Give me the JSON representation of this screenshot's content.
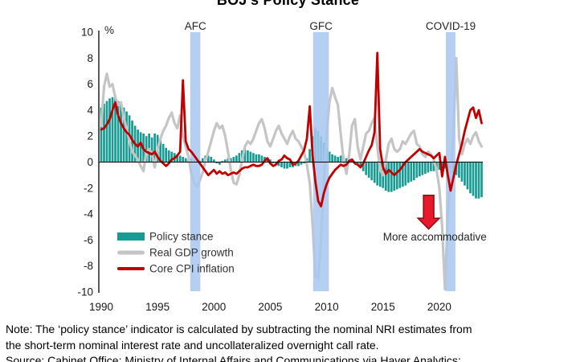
{
  "title": "BOJ’s Policy Stance",
  "chart_data": {
    "type": "combo",
    "frequency": "quarterly",
    "x_axis": {
      "start": 1990,
      "step": 0.25,
      "tick_years": [
        1990,
        1995,
        2000,
        2005,
        2010,
        2015,
        2020
      ]
    },
    "y_axis": {
      "unit_label": "%",
      "min": -10,
      "max": 10,
      "ticks": [
        10,
        8,
        6,
        4,
        2,
        0,
        -2,
        -4,
        -6,
        -8,
        -10
      ]
    },
    "grid": "zero-line-only",
    "legend_position": "inside-lower-left",
    "series": [
      {
        "name": "Policy stance",
        "type": "bar",
        "color": "#189B93",
        "values": [
          4.2,
          4.5,
          4.7,
          4.9,
          5.0,
          4.9,
          4.7,
          4.5,
          4.2,
          3.9,
          3.6,
          3.2,
          2.8,
          2.5,
          2.3,
          2.2,
          2.0,
          2.2,
          1.9,
          2.2,
          2.1,
          1.8,
          1.4,
          1.1,
          0.9,
          0.8,
          0.7,
          0.6,
          0.5,
          0.4,
          0.3,
          0.2,
          0.3,
          0.2,
          0.1,
          0.1,
          0.3,
          0.5,
          0.5,
          0.4,
          0.2,
          -0.1,
          -0.2,
          0.1,
          0.2,
          0.3,
          0.3,
          0.4,
          0.5,
          0.7,
          0.9,
          1.0,
          0.9,
          0.8,
          0.7,
          0.6,
          0.6,
          0.5,
          0.4,
          0.3,
          0.2,
          -0.1,
          -0.2,
          -0.3,
          -0.4,
          -0.5,
          -0.5,
          -0.4,
          -0.4,
          -0.3,
          -0.3,
          -0.2,
          -0.1,
          0.3,
          1.0,
          2.0,
          2.6,
          2.4,
          2.0,
          1.5,
          1.1,
          0.8,
          0.6,
          0.5,
          0.4,
          0.5,
          0.4,
          0.3,
          0.2,
          0.1,
          -0.1,
          -0.2,
          -0.4,
          -0.7,
          -1.0,
          -1.2,
          -1.4,
          -1.6,
          -1.8,
          -1.9,
          -2.0,
          -2.2,
          -2.3,
          -2.3,
          -2.2,
          -2.1,
          -2.0,
          -1.9,
          -1.8,
          -1.6,
          -1.5,
          -1.4,
          -1.2,
          -1.1,
          -1.0,
          -0.9,
          -0.8,
          -0.7,
          -0.7,
          -0.6,
          -0.6,
          -0.5,
          -0.5,
          -0.6,
          -0.7,
          -0.9,
          -1.0,
          -1.2,
          -1.5,
          -1.8,
          -2.1,
          -2.4,
          -2.6,
          -2.8,
          -2.8,
          -2.7
        ]
      },
      {
        "name": "Real GDP growth",
        "type": "line",
        "color": "#C5C5C5",
        "values": [
          2.8,
          5.8,
          6.8,
          5.8,
          6.0,
          5.0,
          4.4,
          4.6,
          3.4,
          2.6,
          1.6,
          0.8,
          0.5,
          0.2,
          -0.3,
          -0.7,
          0.8,
          1.0,
          0.7,
          -0.4,
          1.0,
          1.8,
          2.4,
          2.8,
          3.4,
          3.8,
          3.0,
          2.6,
          3.6,
          2.0,
          1.2,
          0.4,
          -0.9,
          -1.6,
          -1.9,
          -1.4,
          -0.8,
          0.1,
          0.8,
          1.6,
          2.4,
          3.0,
          2.6,
          2.8,
          2.0,
          0.8,
          -0.6,
          -1.6,
          -1.7,
          -1.0,
          0.2,
          1.2,
          1.6,
          1.4,
          1.8,
          2.4,
          3.0,
          3.3,
          2.6,
          1.6,
          1.2,
          1.8,
          2.4,
          2.8,
          2.2,
          1.8,
          1.4,
          2.0,
          2.4,
          1.8,
          1.6,
          1.2,
          0.8,
          -0.2,
          -1.6,
          -4.8,
          -8.8,
          -9.0,
          -6.0,
          -1.6,
          2.2,
          4.6,
          5.7,
          5.0,
          4.4,
          2.2,
          0.2,
          -0.9,
          0.6,
          2.8,
          3.3,
          1.2,
          0.2,
          1.2,
          2.2,
          2.4,
          3.0,
          3.4,
          1.2,
          -0.6,
          -1.0,
          0.2,
          1.4,
          1.8,
          1.0,
          0.8,
          1.0,
          1.6,
          1.4,
          1.8,
          2.2,
          2.4,
          1.4,
          1.2,
          0.6,
          0.4,
          0.8,
          0.6,
          0.2,
          -0.6,
          -2.0,
          -5.0,
          -9.8,
          -4.0,
          -1.0,
          2.0,
          8.0,
          1.8,
          0.6,
          1.4,
          1.8,
          1.4,
          2.0,
          2.3,
          1.6,
          1.2
        ]
      },
      {
        "name": "Core CPI inflation",
        "type": "line",
        "color": "#C00000",
        "values": [
          2.5,
          2.6,
          2.9,
          3.3,
          4.0,
          4.6,
          3.6,
          3.0,
          2.6,
          2.3,
          2.1,
          1.7,
          1.4,
          1.2,
          1.5,
          1.0,
          0.8,
          0.7,
          0.6,
          0.8,
          0.4,
          0.1,
          -0.1,
          -0.3,
          -0.1,
          0.2,
          0.3,
          0.5,
          0.8,
          6.3,
          1.6,
          1.0,
          0.8,
          0.5,
          0.2,
          -0.1,
          -0.4,
          -0.7,
          -1.0,
          -0.8,
          -0.6,
          -0.9,
          -0.7,
          -0.9,
          -0.8,
          -1.0,
          -0.9,
          -0.8,
          -0.9,
          -0.7,
          -0.5,
          -0.4,
          -0.4,
          -0.3,
          -0.2,
          -0.3,
          -0.3,
          -0.2,
          0.1,
          0.3,
          -0.1,
          -0.3,
          -0.2,
          0.1,
          0.2,
          0.5,
          0.3,
          0.2,
          -0.2,
          -0.1,
          0.1,
          0.5,
          0.9,
          1.8,
          4.3,
          0.5,
          -1.5,
          -3.0,
          -3.4,
          -2.4,
          -1.7,
          -1.2,
          -0.9,
          -0.6,
          -0.4,
          -0.2,
          -0.3,
          -0.2,
          0.1,
          0.2,
          -0.1,
          -0.2,
          -0.4,
          -0.1,
          0.4,
          0.9,
          1.3,
          2.3,
          8.4,
          1.0,
          -0.4,
          -0.9,
          -0.6,
          -0.8,
          -1.0,
          -0.8,
          -0.6,
          -0.3,
          0.0,
          0.2,
          0.4,
          0.6,
          0.8,
          1.0,
          0.8,
          0.7,
          0.6,
          0.5,
          0.3,
          0.5,
          0.7,
          -1.1,
          0.4,
          -1.0,
          -2.2,
          -1.2,
          -0.2,
          0.6,
          1.4,
          2.4,
          3.2,
          4.0,
          4.2,
          3.4,
          4.0,
          3.0
        ]
      }
    ],
    "bands": [
      {
        "label": "AFC",
        "from": 1997.9,
        "to": 1998.8
      },
      {
        "label": "GFC",
        "from": 2008.8,
        "to": 2010.2
      },
      {
        "label": "COVID-19",
        "from": 2020.58,
        "to": 2021.43
      }
    ],
    "band_color": "#A8C7F0",
    "annotation": {
      "label": "More accommodative",
      "arrow_direction": "down",
      "arrow_fill": "#E8192C",
      "arrow_outline": "#7F0E0E",
      "arrow_x_year": 2019.05,
      "arrow_top_value": -2.55,
      "arrow_tip_value": -5.15,
      "label_x_year": 2019.6,
      "label_value": -6.05
    }
  },
  "notes": {
    "note_line1": "Note: The ‘policy stance’ indicator is calculated by subtracting the nominal NRI estimates from",
    "note_line2": "the short-term nominal interest rate and uncollateralized overnight call rate.",
    "source": "Source: Cabinet Office; Ministry of Internal Affairs and Communications via Haver Analytics;"
  }
}
